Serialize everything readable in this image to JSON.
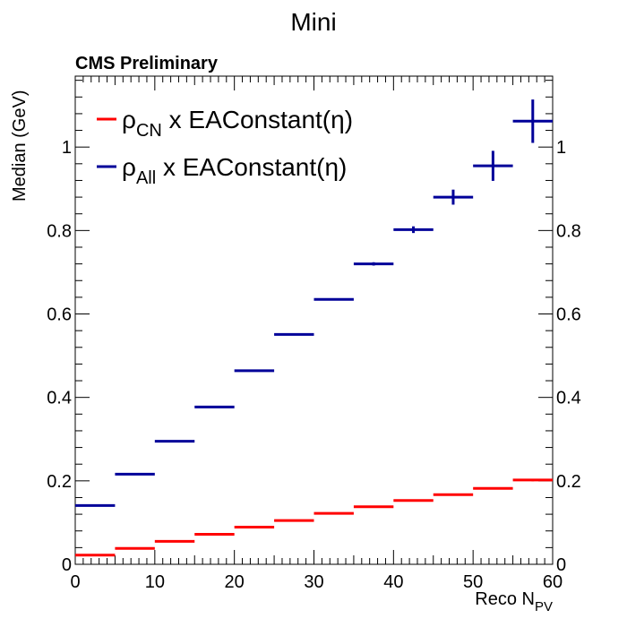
{
  "chart_data": {
    "type": "scatter",
    "title": "Mini",
    "annotation": "CMS Preliminary",
    "xlabel": "Reco N",
    "xlabel_sub": "PV",
    "ylabel": "Median (GeV)",
    "xlim": [
      0,
      60
    ],
    "ylim": [
      0,
      1.17
    ],
    "xticks": [
      0,
      10,
      20,
      30,
      40,
      50,
      60
    ],
    "xtick_labels": [
      "0",
      "10",
      "20",
      "30",
      "40",
      "50",
      "60"
    ],
    "yticks": [
      0,
      0.2,
      0.4,
      0.6,
      0.8,
      1
    ],
    "ytick_labels": [
      "0",
      "0.2",
      "0.4",
      "0.6",
      "0.8",
      "1"
    ],
    "grid": false,
    "legend_position": "top-left",
    "series": [
      {
        "name": "ρ_CN x EAConstant(η)",
        "legend_main": "ρ",
        "legend_sub": "CN",
        "legend_rest": " x EAConstant(η)",
        "color": "#ff0000",
        "points": [
          {
            "x": 2.5,
            "y": 0.022,
            "xerr": 2.5,
            "yerr": 0.001
          },
          {
            "x": 7.5,
            "y": 0.038,
            "xerr": 2.5,
            "yerr": 0.001
          },
          {
            "x": 12.5,
            "y": 0.055,
            "xerr": 2.5,
            "yerr": 0.001
          },
          {
            "x": 17.5,
            "y": 0.072,
            "xerr": 2.5,
            "yerr": 0.001
          },
          {
            "x": 22.5,
            "y": 0.089,
            "xerr": 2.5,
            "yerr": 0.001
          },
          {
            "x": 27.5,
            "y": 0.105,
            "xerr": 2.5,
            "yerr": 0.001
          },
          {
            "x": 32.5,
            "y": 0.122,
            "xerr": 2.5,
            "yerr": 0.001
          },
          {
            "x": 37.5,
            "y": 0.138,
            "xerr": 2.5,
            "yerr": 0.001
          },
          {
            "x": 42.5,
            "y": 0.153,
            "xerr": 2.5,
            "yerr": 0.001
          },
          {
            "x": 47.5,
            "y": 0.167,
            "xerr": 2.5,
            "yerr": 0.001
          },
          {
            "x": 52.5,
            "y": 0.182,
            "xerr": 2.5,
            "yerr": 0.002
          },
          {
            "x": 57.5,
            "y": 0.202,
            "xerr": 2.5,
            "yerr": 0.003
          }
        ]
      },
      {
        "name": "ρ_All x EAConstant(η)",
        "legend_main": "ρ",
        "legend_sub": "All",
        "legend_rest": " x EAConstant(η)",
        "color": "#000099",
        "points": [
          {
            "x": 2.5,
            "y": 0.141,
            "xerr": 2.5,
            "yerr": 0.001
          },
          {
            "x": 7.5,
            "y": 0.216,
            "xerr": 2.5,
            "yerr": 0.001
          },
          {
            "x": 12.5,
            "y": 0.295,
            "xerr": 2.5,
            "yerr": 0.001
          },
          {
            "x": 17.5,
            "y": 0.377,
            "xerr": 2.5,
            "yerr": 0.001
          },
          {
            "x": 22.5,
            "y": 0.464,
            "xerr": 2.5,
            "yerr": 0.001
          },
          {
            "x": 27.5,
            "y": 0.551,
            "xerr": 2.5,
            "yerr": 0.001
          },
          {
            "x": 32.5,
            "y": 0.635,
            "xerr": 2.5,
            "yerr": 0.001
          },
          {
            "x": 37.5,
            "y": 0.72,
            "xerr": 2.5,
            "yerr": 0.004
          },
          {
            "x": 42.5,
            "y": 0.802,
            "xerr": 2.5,
            "yerr": 0.008
          },
          {
            "x": 47.5,
            "y": 0.88,
            "xerr": 2.5,
            "yerr": 0.018
          },
          {
            "x": 52.5,
            "y": 0.955,
            "xerr": 2.5,
            "yerr": 0.036
          },
          {
            "x": 57.5,
            "y": 1.062,
            "xerr": 2.5,
            "yerr": 0.052
          }
        ]
      }
    ]
  }
}
